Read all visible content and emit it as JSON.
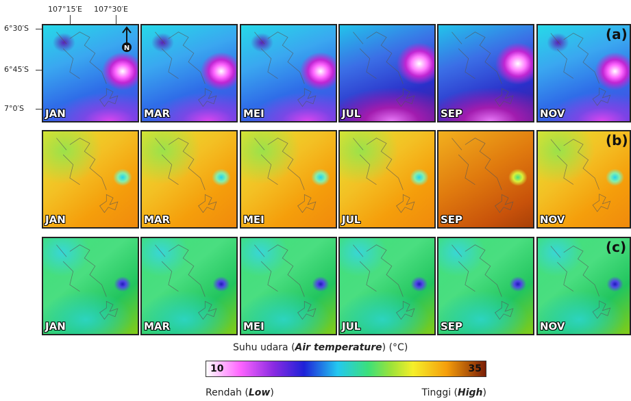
{
  "coordinates": {
    "longitude": [
      "107°15′E",
      "107°30′E"
    ],
    "latitude": [
      "6°30′S",
      "6°45′S",
      "7°0′S"
    ]
  },
  "rows": [
    {
      "label": "(a)",
      "months": [
        "JAN",
        "MAR",
        "MEI",
        "JUL",
        "SEP",
        "NOV"
      ]
    },
    {
      "label": "(b)",
      "months": [
        "JAN",
        "MAR",
        "MEI",
        "JUL",
        "SEP",
        "NOV"
      ]
    },
    {
      "label": "(c)",
      "months": [
        "JAN",
        "MAR",
        "MEI",
        "JUL",
        "SEP",
        "NOV"
      ]
    }
  ],
  "legend": {
    "title": {
      "before": "Suhu udara (",
      "italic": "Air temperature",
      "after": ") (°C)"
    },
    "min": 10,
    "max": 35,
    "low": {
      "before": "Rendah (",
      "italic": "Low",
      "after": ")"
    },
    "high": {
      "before": "Tinggi (",
      "italic": "High",
      "after": ")"
    }
  }
}
